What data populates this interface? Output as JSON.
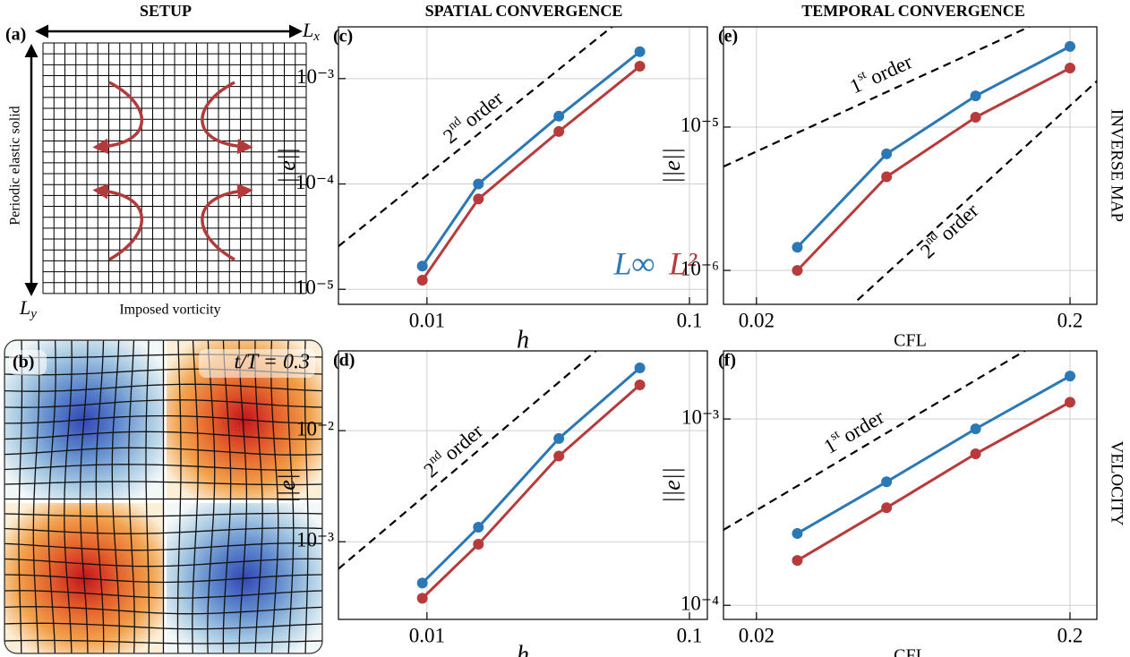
{
  "column_titles": [
    "SETUP",
    "SPATIAL CONVERGENCE",
    "TEMPORAL CONVERGENCE"
  ],
  "row_titles": [
    "INVERSE MAP",
    "VELOCITY"
  ],
  "setup": {
    "panel_a": "(a)",
    "lx": {
      "main": "L",
      "sub": "x"
    },
    "ly": {
      "main": "L",
      "sub": "y"
    },
    "side_label": "Periodic elastic solid",
    "bottom_label": "Imposed vorticity",
    "panel_b": "(b)",
    "time_label": "t/T = 0.3"
  },
  "chart_data": [
    {
      "type": "line",
      "panel": "(c)",
      "xlabel": "h",
      "ylabel": "||e||",
      "log_x": true,
      "log_y": true,
      "grid": true,
      "legend": "lower right",
      "x": [
        0.0096,
        0.0157,
        0.0318,
        0.0647
      ],
      "series": [
        {
          "name": "L∞",
          "color": "#2b78b6",
          "values": [
            1.66e-05,
            0.0001,
            0.00044,
            0.0018
          ]
        },
        {
          "name": "L²",
          "color": "#b93a3a",
          "values": [
            1.22e-05,
            7.2e-05,
            0.000315,
            0.00131
          ]
        }
      ],
      "reference_lines": [
        {
          "label": {
            "ordinal": "2",
            "suffix": "nd",
            "word": "order"
          },
          "x": [
            0.0046,
            0.117
          ],
          "values": [
            2.56e-05,
            0.01656
          ]
        }
      ],
      "xlim": [
        0.0046,
        0.117
      ],
      "ylim": [
        7.2e-06,
        0.0031
      ],
      "xticks": [
        0.01,
        0.1
      ],
      "yticks": [
        {
          "value": 1e-05,
          "label": "10⁻⁵"
        },
        {
          "value": 0.0001,
          "label": "10⁻⁴"
        },
        {
          "value": 0.001,
          "label": "10⁻³"
        }
      ]
    },
    {
      "type": "line",
      "panel": "(d)",
      "xlabel": "h",
      "ylabel": "||e||",
      "log_x": true,
      "log_y": true,
      "grid": true,
      "x": [
        0.0096,
        0.0157,
        0.0318,
        0.0647
      ],
      "series": [
        {
          "color": "#2b78b6",
          "values": [
            0.000425,
            0.00135,
            0.0085,
            0.0367
          ]
        },
        {
          "color": "#b93a3a",
          "values": [
            0.00031,
            0.00095,
            0.0059,
            0.0258
          ]
        }
      ],
      "reference_lines": [
        {
          "label": {
            "ordinal": "2",
            "suffix": "nd",
            "word": "order"
          },
          "x": [
            0.0046,
            0.117
          ],
          "values": [
            0.00057,
            0.369
          ]
        }
      ],
      "xlim": [
        0.0046,
        0.117
      ],
      "ylim": [
        0.0002,
        0.0522
      ],
      "xticks": [
        0.01,
        0.1
      ],
      "yticks": [
        {
          "value": 0.001,
          "label": "10⁻³"
        },
        {
          "value": 0.01,
          "label": "10⁻²"
        }
      ]
    },
    {
      "type": "line",
      "panel": "(e)",
      "xlabel": "CFL",
      "ylabel": "||e||",
      "log_x": true,
      "log_y": true,
      "grid": true,
      "x": [
        0.027,
        0.052,
        0.1,
        0.2
      ],
      "series": [
        {
          "color": "#2b78b6",
          "values": [
            1.45e-06,
            6.5e-06,
            1.65e-05,
            3.65e-05
          ]
        },
        {
          "color": "#b93a3a",
          "values": [
            1e-06,
            4.5e-06,
            1.17e-05,
            2.58e-05
          ]
        }
      ],
      "reference_lines": [
        {
          "label": {
            "ordinal": "1",
            "suffix": "st",
            "word": "order"
          },
          "x": [
            0.0157,
            0.2436
          ],
          "values": [
            5.3e-06,
            8.22e-05
          ]
        },
        {
          "label": {
            "ordinal": "2",
            "suffix": "nd",
            "word": "order"
          },
          "x": [
            0.042,
            0.2436
          ],
          "values": [
            6.2e-07,
            2.09e-05
          ]
        }
      ],
      "xlim": [
        0.0157,
        0.2436
      ],
      "ylim": [
        5.8e-07,
        5e-05
      ],
      "xticks": [
        0.02,
        0.2
      ],
      "yticks": [
        {
          "value": 1e-06,
          "label": "10⁻⁶"
        },
        {
          "value": 1e-05,
          "label": "10⁻⁵"
        }
      ]
    },
    {
      "type": "line",
      "panel": "(f)",
      "xlabel": "CFL",
      "ylabel": "||e||",
      "log_x": true,
      "log_y": true,
      "grid": true,
      "x": [
        0.027,
        0.052,
        0.1,
        0.2
      ],
      "series": [
        {
          "color": "#2b78b6",
          "values": [
            0.000243,
            0.00046,
            0.000885,
            0.0017
          ]
        },
        {
          "color": "#b93a3a",
          "values": [
            0.000174,
            0.000334,
            0.00065,
            0.00123
          ]
        }
      ],
      "reference_lines": [
        {
          "label": {
            "ordinal": "1",
            "suffix": "st",
            "word": "order"
          },
          "x": [
            0.0157,
            0.2436
          ],
          "values": [
            0.000254,
            0.00394
          ]
        }
      ],
      "xlim": [
        0.0157,
        0.2436
      ],
      "ylim": [
        8.4e-05,
        0.00232
      ],
      "xticks": [
        0.02,
        0.2
      ],
      "yticks": [
        {
          "value": 0.0001,
          "label": "10⁻⁴"
        },
        {
          "value": 0.001,
          "label": "10⁻³"
        }
      ]
    }
  ]
}
